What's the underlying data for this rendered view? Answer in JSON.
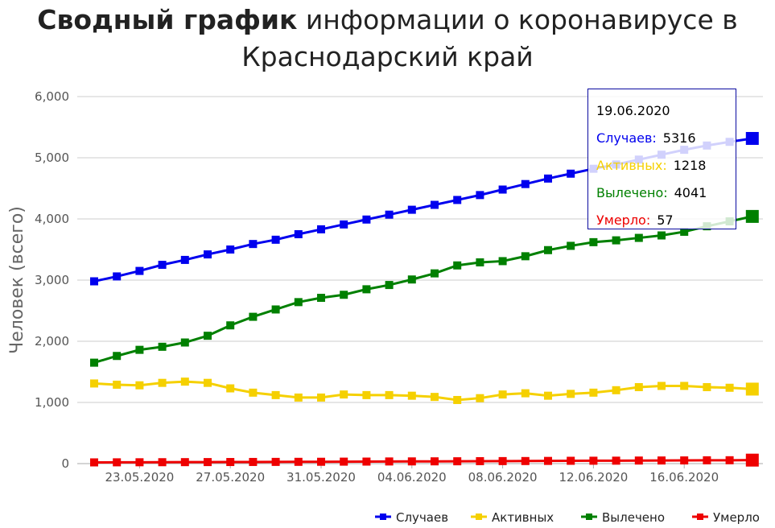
{
  "title": {
    "bold": "Сводный график",
    "rest": " информации о коронавирусе в",
    "line2": "Краснодарский край"
  },
  "colors": {
    "cases": "#0000ee",
    "active": "#f5d000",
    "recovered": "#008000",
    "deaths": "#ee0000",
    "grid": "#cccccc",
    "axis": "#aaaaaa"
  },
  "chart_data": {
    "type": "line",
    "ylabel": "Человек (всего)",
    "ylim": [
      0,
      6000
    ],
    "yticks": [
      "0",
      "1,000",
      "2,000",
      "3,000",
      "4,000",
      "5,000",
      "6,000"
    ],
    "x": [
      "21.05.2020",
      "22.05.2020",
      "23.05.2020",
      "24.05.2020",
      "25.05.2020",
      "26.05.2020",
      "27.05.2020",
      "28.05.2020",
      "29.05.2020",
      "30.05.2020",
      "31.05.2020",
      "01.06.2020",
      "02.06.2020",
      "03.06.2020",
      "04.06.2020",
      "05.06.2020",
      "06.06.2020",
      "07.06.2020",
      "08.06.2020",
      "09.06.2020",
      "10.06.2020",
      "11.06.2020",
      "12.06.2020",
      "13.06.2020",
      "14.06.2020",
      "15.06.2020",
      "16.06.2020",
      "17.06.2020",
      "18.06.2020",
      "19.06.2020"
    ],
    "xtick_labels": [
      "23.05.2020",
      "27.05.2020",
      "31.05.2020",
      "04.06.2020",
      "08.06.2020",
      "12.06.2020",
      "16.06.2020"
    ],
    "legend_position": "bottom-right",
    "grid": true,
    "series": [
      {
        "name": "Случаев",
        "color_key": "cases",
        "values": [
          2980,
          3060,
          3150,
          3250,
          3330,
          3420,
          3500,
          3590,
          3660,
          3750,
          3830,
          3910,
          3990,
          4070,
          4150,
          4230,
          4310,
          4390,
          4480,
          4570,
          4660,
          4740,
          4820,
          4890,
          4970,
          5050,
          5130,
          5200,
          5260,
          5316
        ]
      },
      {
        "name": "Активных",
        "color_key": "active",
        "values": [
          1310,
          1290,
          1280,
          1320,
          1340,
          1320,
          1230,
          1160,
          1120,
          1080,
          1080,
          1130,
          1120,
          1120,
          1110,
          1090,
          1040,
          1070,
          1130,
          1150,
          1110,
          1140,
          1160,
          1200,
          1250,
          1270,
          1270,
          1250,
          1240,
          1218
        ]
      },
      {
        "name": "Вылечено",
        "color_key": "recovered",
        "values": [
          1650,
          1760,
          1860,
          1910,
          1980,
          2090,
          2260,
          2400,
          2520,
          2640,
          2710,
          2760,
          2850,
          2920,
          3010,
          3110,
          3240,
          3290,
          3310,
          3390,
          3490,
          3560,
          3620,
          3650,
          3690,
          3730,
          3790,
          3880,
          3960,
          4041
        ]
      },
      {
        "name": "Умерло",
        "color_key": "deaths",
        "values": [
          20,
          21,
          22,
          23,
          24,
          25,
          26,
          27,
          28,
          29,
          30,
          32,
          33,
          35,
          36,
          37,
          38,
          40,
          41,
          42,
          44,
          46,
          47,
          48,
          50,
          51,
          52,
          54,
          55,
          57
        ]
      }
    ]
  },
  "tooltip": {
    "date": "19.06.2020",
    "rows": [
      {
        "label": "Случаев:",
        "value": "5316",
        "color_key": "cases"
      },
      {
        "label": "Активных:",
        "value": "1218",
        "color_key": "active"
      },
      {
        "label": "Вылечено:",
        "value": "4041",
        "color_key": "recovered"
      },
      {
        "label": "Умерло:",
        "value": "57",
        "color_key": "deaths"
      }
    ]
  }
}
